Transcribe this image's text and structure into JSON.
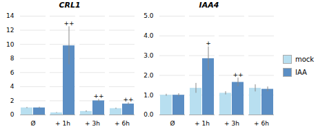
{
  "chart_data": [
    {
      "type": "bar",
      "title": "CRL1",
      "categories": [
        "Ø",
        "+ 1h",
        "+ 3h",
        "+ 6h"
      ],
      "series": [
        {
          "name": "mock",
          "color": "#b8dff0",
          "values": [
            1.0,
            0.3,
            0.5,
            0.9
          ],
          "errors": [
            0.08,
            0.05,
            0.1,
            0.08
          ]
        },
        {
          "name": "IAA",
          "color": "#5b8ec4",
          "values": [
            1.0,
            9.8,
            2.0,
            1.55
          ],
          "errors": [
            0.1,
            2.7,
            0.2,
            0.18
          ]
        }
      ],
      "annotations": [
        {
          "category": "+ 1h",
          "series": "IAA",
          "text": "++"
        },
        {
          "category": "+ 3h",
          "series": "IAA",
          "text": "++"
        },
        {
          "category": "+ 6h",
          "series": "IAA",
          "text": "++"
        }
      ],
      "ylim": [
        0,
        14
      ],
      "yticks": [
        0,
        2,
        4,
        6,
        8,
        10,
        12,
        14
      ],
      "grid": true
    },
    {
      "type": "bar",
      "title": "IAA4",
      "categories": [
        "Ø",
        "+ 1h",
        "+ 3h",
        "+ 6h"
      ],
      "series": [
        {
          "name": "mock",
          "color": "#b8dff0",
          "values": [
            1.0,
            1.35,
            1.1,
            1.35
          ],
          "errors": [
            0.05,
            0.25,
            0.08,
            0.18
          ]
        },
        {
          "name": "IAA",
          "color": "#5b8ec4",
          "values": [
            1.0,
            2.85,
            1.65,
            1.3
          ],
          "errors": [
            0.08,
            0.6,
            0.22,
            0.12
          ]
        }
      ],
      "annotations": [
        {
          "category": "+ 1h",
          "series": "IAA",
          "text": "+"
        },
        {
          "category": "+ 3h",
          "series": "IAA",
          "text": "++"
        }
      ],
      "ylim": [
        0,
        5
      ],
      "yticks": [
        0,
        1,
        2,
        3,
        4,
        5
      ],
      "grid": true,
      "legend": "right"
    }
  ]
}
